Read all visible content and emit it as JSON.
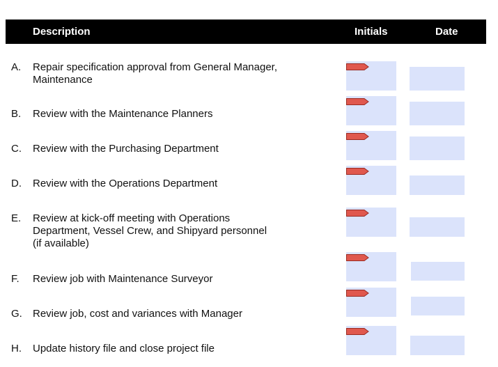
{
  "header": {
    "description": "Description",
    "initials": "Initials",
    "date": "Date"
  },
  "rows": [
    {
      "letter": "A.",
      "lines": [
        "Repair specification approval from General Manager,",
        "Maintenance"
      ]
    },
    {
      "letter": "B.",
      "lines": [
        "Review with the Maintenance Planners"
      ]
    },
    {
      "letter": "C.",
      "lines": [
        "Review with the Purchasing Department"
      ]
    },
    {
      "letter": "D.",
      "lines": [
        "Review with the Operations Department"
      ]
    },
    {
      "letter": "E.",
      "lines": [
        "Review at kick-off meeting with Operations",
        "Department, Vessel Crew, and Shipyard personnel",
        "(if available)"
      ]
    },
    {
      "letter": "F.",
      "lines": [
        "Review job with Maintenance Surveyor"
      ]
    },
    {
      "letter": "G.",
      "lines": [
        "Review job, cost and variances with Manager"
      ]
    },
    {
      "letter": "H.",
      "lines": [
        "Update history file and close project file"
      ]
    }
  ]
}
